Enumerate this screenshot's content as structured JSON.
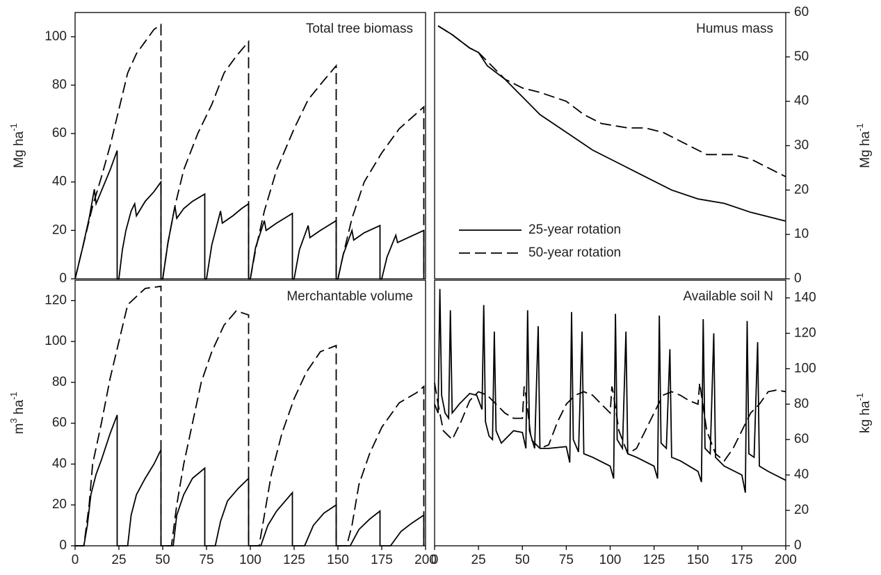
{
  "chart_data": [
    {
      "type": "line",
      "title": "Total tree biomass",
      "y_label": [
        {
          "text": "Mg ha"
        },
        {
          "text": "-1",
          "sup": true
        }
      ],
      "y_axis_side": "left",
      "show_x_ticks": false,
      "xlim": [
        0,
        200
      ],
      "xticks": [
        0,
        25,
        50,
        75,
        100,
        125,
        150,
        175,
        200
      ],
      "ylim": [
        0,
        110
      ],
      "yticks": [
        0,
        20,
        40,
        60,
        80,
        100
      ],
      "series": [
        {
          "color": "#000000",
          "dash": "solid",
          "x": [
            0,
            4,
            8,
            11,
            12,
            16,
            20,
            24,
            24,
            25,
            27,
            29,
            32,
            34,
            35,
            40,
            45,
            49,
            49,
            50,
            53,
            57,
            58,
            62,
            67,
            74,
            74,
            75,
            78,
            83,
            84,
            90,
            95,
            99,
            99,
            100,
            103,
            108,
            109,
            115,
            124,
            124,
            125,
            128,
            133,
            134,
            140,
            149,
            149,
            150,
            153,
            158,
            159,
            165,
            174,
            174,
            175,
            178,
            183,
            184,
            190,
            199,
            199
          ],
          "values": [
            0,
            12,
            25,
            37,
            31,
            38,
            45,
            53,
            0,
            0,
            12,
            20,
            28,
            31,
            26,
            32,
            36,
            40,
            0,
            0,
            15,
            30,
            25,
            29,
            32,
            35,
            0,
            0,
            14,
            28,
            23,
            26,
            29,
            31,
            0,
            0,
            13,
            24,
            20,
            23,
            27,
            0,
            0,
            12,
            22,
            17,
            20,
            24,
            0,
            0,
            10,
            20,
            16,
            19,
            22,
            0,
            0,
            9,
            18,
            15,
            17,
            20,
            0
          ]
        },
        {
          "color": "#000000",
          "dash": "dashed",
          "x": [
            0,
            5,
            10,
            15,
            20,
            25,
            30,
            35,
            40,
            45,
            49,
            49,
            50,
            53,
            57,
            62,
            70,
            78,
            85,
            92,
            99,
            99,
            100,
            103,
            108,
            115,
            125,
            133,
            142,
            149,
            149,
            150,
            153,
            158,
            165,
            175,
            185,
            199,
            199
          ],
          "values": [
            0,
            15,
            30,
            42,
            55,
            70,
            85,
            93,
            98,
            103,
            105,
            0,
            0,
            15,
            30,
            45,
            60,
            72,
            85,
            92,
            98,
            0,
            0,
            12,
            28,
            45,
            62,
            74,
            82,
            88,
            0,
            0,
            10,
            25,
            40,
            52,
            62,
            71,
            0
          ]
        }
      ]
    },
    {
      "type": "line",
      "title": "Humus mass",
      "y_label": [
        {
          "text": "Mg ha"
        },
        {
          "text": "-1",
          "sup": true
        }
      ],
      "y_axis_side": "right",
      "show_x_ticks": false,
      "xlim": [
        0,
        200
      ],
      "xticks": [
        0,
        25,
        50,
        75,
        100,
        125,
        150,
        175,
        200
      ],
      "ylim": [
        0,
        60
      ],
      "yticks": [
        0,
        10,
        20,
        30,
        40,
        50,
        60
      ],
      "legend": "lower-left",
      "series": [
        {
          "name": "25-year rotation",
          "color": "#000000",
          "dash": "solid",
          "x": [
            2,
            10,
            20,
            25,
            30,
            40,
            50,
            60,
            75,
            90,
            105,
            120,
            135,
            150,
            165,
            180,
            200
          ],
          "values": [
            57,
            55,
            52,
            51,
            48,
            45,
            41,
            37,
            33,
            29,
            26,
            23,
            20,
            18,
            17,
            15,
            13
          ]
        },
        {
          "name": "50-year rotation",
          "color": "#000000",
          "dash": "dashed",
          "x": [
            2,
            10,
            20,
            25,
            30,
            40,
            50,
            60,
            75,
            85,
            95,
            110,
            120,
            130,
            145,
            155,
            170,
            180,
            190,
            200
          ],
          "values": [
            57,
            55,
            52,
            51,
            49,
            45,
            43,
            42,
            40,
            37,
            35,
            34,
            34,
            33,
            30,
            28,
            28,
            27,
            25,
            23
          ]
        }
      ]
    },
    {
      "type": "line",
      "title": "Merchantable volume",
      "y_label": [
        {
          "text": "m"
        },
        {
          "text": "3",
          "sup": true
        },
        {
          "text": " ha"
        },
        {
          "text": "-1",
          "sup": true
        }
      ],
      "y_axis_side": "left",
      "show_x_ticks": true,
      "xlim": [
        0,
        200
      ],
      "xticks": [
        0,
        25,
        50,
        75,
        100,
        125,
        150,
        175,
        200
      ],
      "ylim": [
        0,
        130
      ],
      "yticks": [
        0,
        20,
        40,
        60,
        80,
        100,
        120
      ],
      "series": [
        {
          "color": "#000000",
          "dash": "solid",
          "x": [
            0,
            5,
            7,
            9,
            12,
            15,
            20,
            24,
            24,
            30,
            32,
            35,
            40,
            45,
            49,
            49,
            56,
            58,
            62,
            67,
            74,
            74,
            80,
            83,
            87,
            93,
            99,
            99,
            106,
            110,
            115,
            124,
            124,
            131,
            136,
            142,
            149,
            149,
            157,
            162,
            168,
            174,
            174,
            180,
            186,
            192,
            199,
            199
          ],
          "values": [
            0,
            0,
            10,
            25,
            35,
            42,
            55,
            64,
            0,
            0,
            15,
            25,
            33,
            40,
            47,
            0,
            0,
            15,
            25,
            33,
            38,
            0,
            0,
            12,
            22,
            28,
            33,
            0,
            0,
            10,
            17,
            26,
            0,
            0,
            10,
            16,
            20,
            0,
            0,
            8,
            13,
            17,
            0,
            0,
            7,
            11,
            15,
            0
          ]
        },
        {
          "color": "#000000",
          "dash": "dashed",
          "x": [
            0,
            5,
            8,
            10,
            15,
            20,
            25,
            30,
            35,
            40,
            49,
            49,
            55,
            58,
            62,
            67,
            72,
            78,
            85,
            92,
            99,
            99,
            105,
            108,
            112,
            118,
            125,
            132,
            140,
            149,
            149,
            155,
            158,
            162,
            168,
            175,
            185,
            195,
            199,
            199
          ],
          "values": [
            0,
            0,
            20,
            40,
            60,
            82,
            100,
            118,
            122,
            126,
            127,
            0,
            0,
            20,
            40,
            60,
            80,
            95,
            108,
            115,
            113,
            0,
            0,
            15,
            35,
            55,
            72,
            85,
            95,
            98,
            0,
            0,
            10,
            30,
            45,
            58,
            70,
            75,
            78,
            0
          ]
        }
      ]
    },
    {
      "type": "line",
      "title": "Available soil N",
      "y_label": [
        {
          "text": "kg ha"
        },
        {
          "text": "-1",
          "sup": true
        }
      ],
      "y_axis_side": "right",
      "show_x_ticks": true,
      "xlim": [
        0,
        200
      ],
      "xticks": [
        0,
        25,
        50,
        75,
        100,
        125,
        150,
        175,
        200
      ],
      "ylim": [
        0,
        150
      ],
      "yticks": [
        0,
        20,
        40,
        60,
        80,
        100,
        120,
        140
      ],
      "series": [
        {
          "color": "#000000",
          "dash": "solid",
          "x": [
            0,
            2,
            3,
            4,
            6,
            8,
            9,
            10,
            14,
            20,
            24,
            27,
            28,
            29,
            31,
            33,
            34,
            35,
            38,
            45,
            50,
            52,
            53,
            54,
            57,
            59,
            60,
            65,
            75,
            77,
            78,
            79,
            82,
            84,
            85,
            90,
            100,
            102,
            103,
            104,
            107,
            109,
            110,
            115,
            125,
            127,
            128,
            129,
            132,
            134,
            135,
            140,
            150,
            152,
            153,
            154,
            157,
            159,
            160,
            165,
            175,
            177,
            178,
            179,
            182,
            184,
            185,
            190,
            200
          ],
          "values": [
            80,
            75,
            145,
            85,
            75,
            72,
            133,
            75,
            80,
            86,
            85,
            77,
            136,
            70,
            62,
            60,
            121,
            65,
            58,
            65,
            64,
            55,
            133,
            65,
            55,
            124,
            55,
            55,
            56,
            47,
            132,
            60,
            53,
            121,
            52,
            50,
            45,
            38,
            131,
            60,
            55,
            121,
            52,
            50,
            45,
            38,
            130,
            58,
            55,
            111,
            50,
            48,
            42,
            36,
            128,
            55,
            52,
            120,
            50,
            45,
            40,
            30,
            127,
            52,
            50,
            115,
            45,
            42,
            37
          ]
        },
        {
          "color": "#000000",
          "dash": "dashed",
          "x": [
            0,
            2,
            5,
            10,
            15,
            20,
            25,
            30,
            35,
            40,
            45,
            50,
            51,
            52,
            55,
            60,
            65,
            70,
            75,
            80,
            85,
            90,
            95,
            100,
            101,
            102,
            105,
            110,
            115,
            120,
            125,
            130,
            135,
            140,
            145,
            150,
            151,
            152,
            155,
            160,
            165,
            170,
            175,
            180,
            185,
            190,
            195,
            200
          ],
          "values": [
            92,
            80,
            65,
            60,
            70,
            82,
            87,
            85,
            80,
            75,
            72,
            72,
            90,
            85,
            60,
            55,
            57,
            70,
            80,
            85,
            87,
            85,
            80,
            75,
            90,
            85,
            65,
            52,
            55,
            65,
            75,
            85,
            87,
            85,
            82,
            80,
            92,
            85,
            65,
            52,
            48,
            55,
            65,
            75,
            80,
            87,
            88,
            87
          ]
        }
      ]
    }
  ]
}
